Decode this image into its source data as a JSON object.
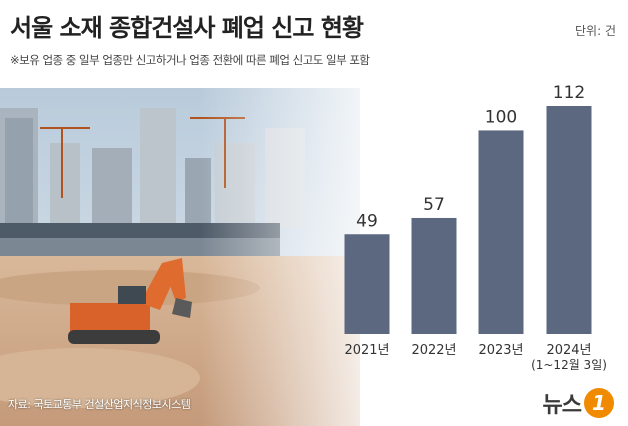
{
  "header": {
    "title": "서울 소재 종합건설사 폐업 신고 현황",
    "unit": "단위: 건",
    "note": "※보유 업종 중 일부 업종만 신고하거나 업종 전환에 따른 폐업 신고도 일부 포함"
  },
  "footer": {
    "source": "자료: 국토교통부 건설산업지식정보시스템",
    "logo_text": "뉴스",
    "logo_number": "1"
  },
  "colors": {
    "bar": "#5c6780",
    "title": "#222222",
    "logo_accent": "#f08a00"
  },
  "chart_data": {
    "type": "bar",
    "title": "서울 소재 종합건설사 폐업 신고 현황",
    "unit": "단위: 건",
    "categories": [
      [
        "2021년"
      ],
      [
        "2022년"
      ],
      [
        "2023년"
      ],
      [
        "2024년",
        "(1~12월 3일)"
      ]
    ],
    "values": [
      49,
      57,
      100,
      112
    ],
    "value_labels": [
      "49",
      "57",
      "100",
      "112"
    ],
    "ylim": [
      0,
      112
    ],
    "grid": false,
    "legend": "none"
  }
}
